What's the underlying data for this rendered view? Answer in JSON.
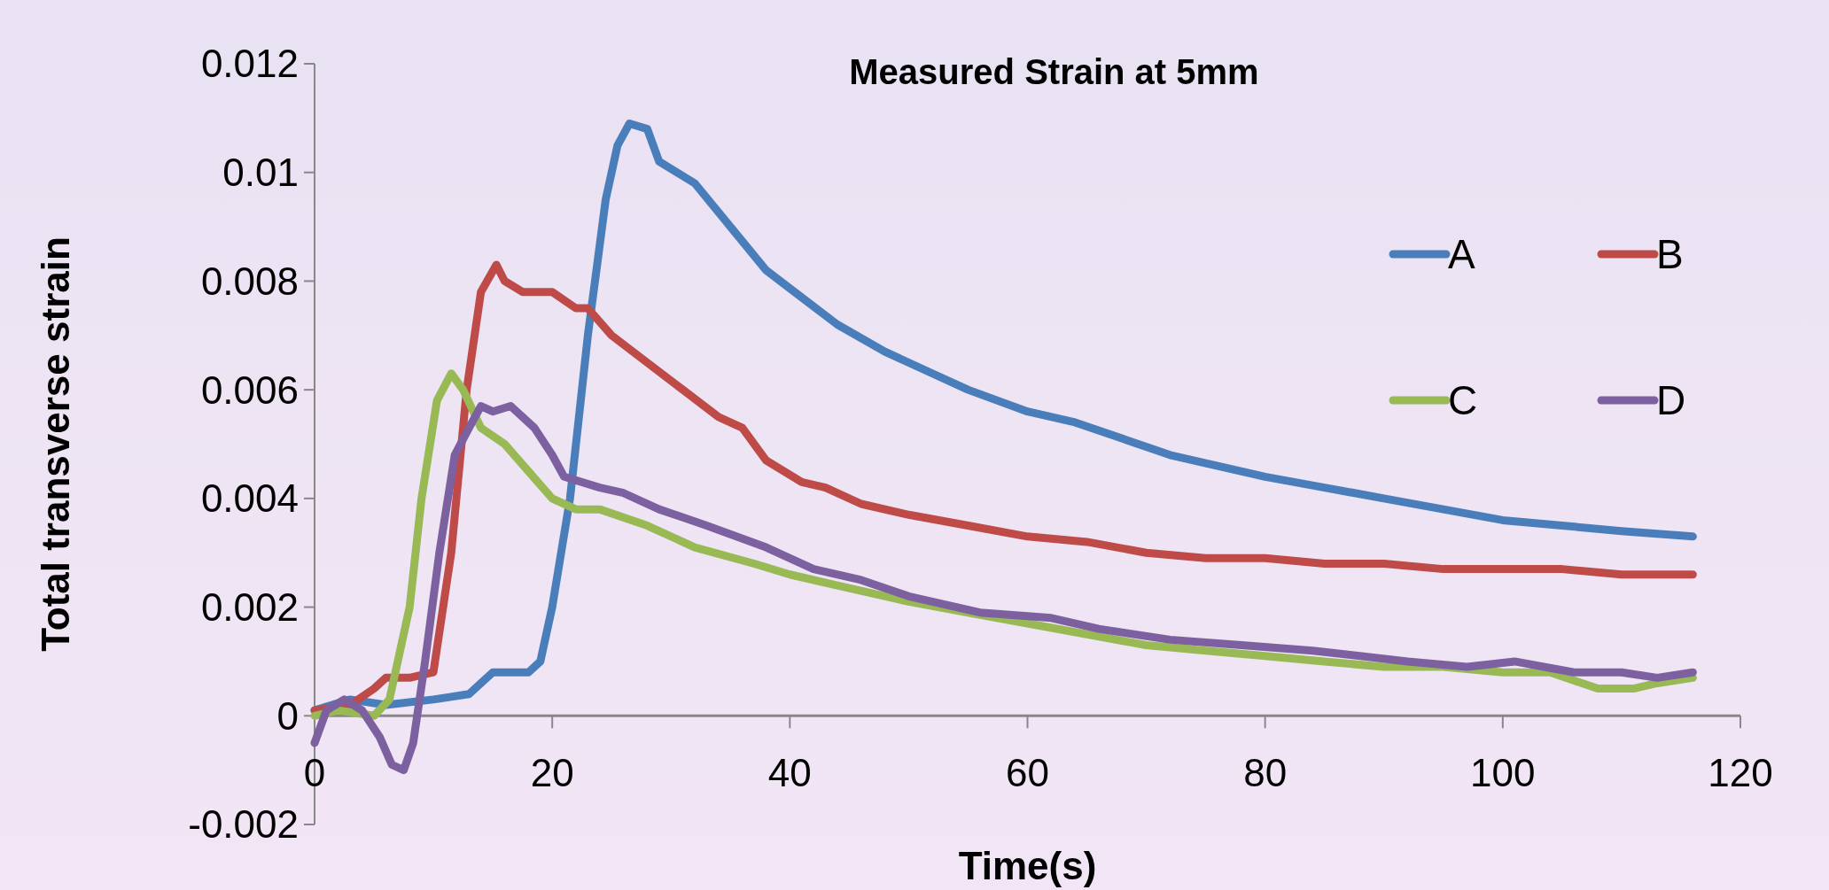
{
  "chart_data": {
    "type": "line",
    "title": "Measured Strain at 5mm",
    "xlabel": "Time(s)",
    "ylabel": "Total transverse strain",
    "xlim": [
      0,
      120
    ],
    "xticks": [
      0,
      20,
      40,
      60,
      80,
      100,
      120
    ],
    "ylim": [
      -0.002,
      0.012
    ],
    "yticks": [
      -0.002,
      0,
      0.002,
      0.004,
      0.006,
      0.008,
      0.01,
      0.012
    ],
    "grid": false,
    "legend": "top right",
    "marker": "none",
    "line_style": "solid",
    "series": [
      {
        "name": "A",
        "color": "#4a7ebb",
        "x": [
          0,
          3,
          6,
          10,
          13,
          15,
          18,
          19,
          20,
          21.5,
          23,
          24.5,
          25.5,
          26.5,
          28,
          29,
          32,
          35,
          38,
          41,
          44,
          48,
          52,
          55,
          60,
          64,
          68,
          72,
          76,
          80,
          85,
          90,
          95,
          100,
          105,
          110,
          116
        ],
        "values": [
          0.0001,
          0.0003,
          0.0002,
          0.0003,
          0.0004,
          0.0008,
          0.0008,
          0.001,
          0.002,
          0.004,
          0.007,
          0.0095,
          0.0105,
          0.0109,
          0.0108,
          0.0102,
          0.0098,
          0.009,
          0.0082,
          0.0077,
          0.0072,
          0.0067,
          0.0063,
          0.006,
          0.0056,
          0.0054,
          0.0051,
          0.0048,
          0.0046,
          0.0044,
          0.0042,
          0.004,
          0.0038,
          0.0036,
          0.0035,
          0.0034,
          0.0033
        ]
      },
      {
        "name": "B",
        "color": "#be4b48",
        "x": [
          0,
          3,
          5,
          6,
          8,
          10,
          11.5,
          12.8,
          14,
          15.3,
          16,
          17.5,
          20,
          22,
          23,
          25,
          28,
          31,
          34,
          36,
          38,
          41,
          43,
          46,
          50,
          55,
          60,
          65,
          70,
          75,
          80,
          85,
          90,
          95,
          100,
          105,
          110,
          116
        ],
        "values": [
          0.0001,
          0.0002,
          0.0005,
          0.0007,
          0.0007,
          0.0008,
          0.003,
          0.006,
          0.0078,
          0.0083,
          0.008,
          0.0078,
          0.0078,
          0.0075,
          0.0075,
          0.007,
          0.0065,
          0.006,
          0.0055,
          0.0053,
          0.0047,
          0.0043,
          0.0042,
          0.0039,
          0.0037,
          0.0035,
          0.0033,
          0.0032,
          0.003,
          0.0029,
          0.0029,
          0.0028,
          0.0028,
          0.0027,
          0.0027,
          0.0027,
          0.0026,
          0.0026
        ]
      },
      {
        "name": "C",
        "color": "#98b954",
        "x": [
          0,
          2,
          5,
          6.3,
          8,
          9,
          10.3,
          11.5,
          12.5,
          14,
          16,
          18,
          20,
          22,
          24,
          28,
          32,
          37,
          40,
          44,
          50,
          55,
          60,
          65,
          70,
          75,
          80,
          85,
          90,
          95,
          100,
          104,
          108,
          111,
          113,
          116
        ],
        "values": [
          0,
          0.0001,
          0,
          0.0003,
          0.002,
          0.004,
          0.0058,
          0.0063,
          0.006,
          0.0053,
          0.005,
          0.0045,
          0.004,
          0.0038,
          0.0038,
          0.0035,
          0.0031,
          0.0028,
          0.0026,
          0.0024,
          0.0021,
          0.0019,
          0.0017,
          0.0015,
          0.0013,
          0.0012,
          0.0011,
          0.001,
          0.0009,
          0.0009,
          0.0008,
          0.0008,
          0.0005,
          0.0005,
          0.0006,
          0.0007
        ]
      },
      {
        "name": "D",
        "color": "#7d60a0",
        "x": [
          0,
          1,
          2.5,
          4,
          5.5,
          6.5,
          7.5,
          8.3,
          9.3,
          10.5,
          11.8,
          13,
          14,
          15,
          16.5,
          18.5,
          20,
          21,
          24,
          26,
          29,
          33,
          38,
          42,
          46,
          50,
          56,
          62,
          66,
          72,
          78,
          84,
          92,
          97,
          101,
          106,
          110,
          113,
          116
        ],
        "values": [
          -0.0005,
          0.0001,
          0.0003,
          0.0001,
          -0.0004,
          -0.0009,
          -0.001,
          -0.0005,
          0.001,
          0.003,
          0.0048,
          0.0053,
          0.0057,
          0.0056,
          0.0057,
          0.0053,
          0.0048,
          0.0044,
          0.0042,
          0.0041,
          0.0038,
          0.0035,
          0.0031,
          0.0027,
          0.0025,
          0.0022,
          0.0019,
          0.0018,
          0.0016,
          0.0014,
          0.0013,
          0.0012,
          0.001,
          0.0009,
          0.001,
          0.0008,
          0.0008,
          0.0007,
          0.0008
        ]
      }
    ]
  }
}
